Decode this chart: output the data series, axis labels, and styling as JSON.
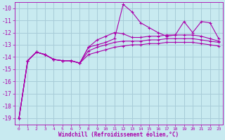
{
  "xlabel": "Windchill (Refroidissement éolien,°C)",
  "background_color": "#c8eaf0",
  "grid_color": "#a8ccd8",
  "line_color": "#aa00aa",
  "xlim": [
    -0.5,
    23.5
  ],
  "ylim": [
    -19.5,
    -9.5
  ],
  "yticks": [
    -19,
    -18,
    -17,
    -16,
    -15,
    -14,
    -13,
    -12,
    -11,
    -10
  ],
  "xticks": [
    0,
    1,
    2,
    3,
    4,
    5,
    6,
    7,
    8,
    9,
    10,
    11,
    12,
    13,
    14,
    15,
    16,
    17,
    18,
    19,
    20,
    21,
    22,
    23
  ],
  "series": [
    [
      -19.0,
      -14.3,
      -13.6,
      -13.8,
      -14.2,
      -14.3,
      -14.3,
      -14.5,
      -13.2,
      -13.0,
      -12.8,
      -12.5,
      -9.7,
      -10.3,
      -11.2,
      -11.6,
      -12.0,
      -12.3,
      -12.2,
      -11.1,
      -12.0,
      -11.1,
      -11.2,
      -12.5
    ],
    [
      -19.0,
      -14.3,
      -13.6,
      -13.8,
      -14.2,
      -14.3,
      -14.3,
      -14.5,
      -13.2,
      -12.6,
      -12.3,
      -12.0,
      -12.1,
      -12.4,
      -12.4,
      -12.3,
      -12.3,
      -12.2,
      -12.2,
      -12.2,
      -12.2,
      -12.3,
      -12.5,
      -12.7
    ],
    [
      -19.0,
      -14.3,
      -13.6,
      -13.8,
      -14.2,
      -14.3,
      -14.3,
      -14.5,
      -13.5,
      -13.2,
      -13.0,
      -12.8,
      -12.7,
      -12.7,
      -12.7,
      -12.6,
      -12.6,
      -12.5,
      -12.5,
      -12.5,
      -12.5,
      -12.6,
      -12.7,
      -12.8
    ],
    [
      -19.0,
      -14.3,
      -13.6,
      -13.8,
      -14.2,
      -14.3,
      -14.3,
      -14.5,
      -13.8,
      -13.6,
      -13.4,
      -13.2,
      -13.1,
      -13.0,
      -13.0,
      -12.9,
      -12.9,
      -12.8,
      -12.8,
      -12.8,
      -12.8,
      -12.9,
      -13.0,
      -13.1
    ]
  ]
}
